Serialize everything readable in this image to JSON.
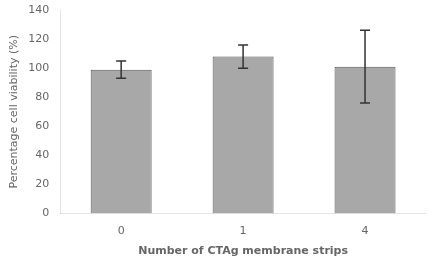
{
  "chart_data": {
    "type": "bar",
    "categories": [
      "0",
      "1",
      "4"
    ],
    "values": [
      99,
      108,
      101
    ],
    "errors": [
      6,
      8,
      25
    ],
    "color": "#a8a8a8",
    "xlabel": "Number of CTAg membrane strips",
    "ylabel": "Percentage cell viability (%)",
    "ylim": [
      0,
      140
    ],
    "yticks": [
      0,
      20,
      40,
      60,
      80,
      100,
      120,
      140
    ],
    "grid": false
  }
}
